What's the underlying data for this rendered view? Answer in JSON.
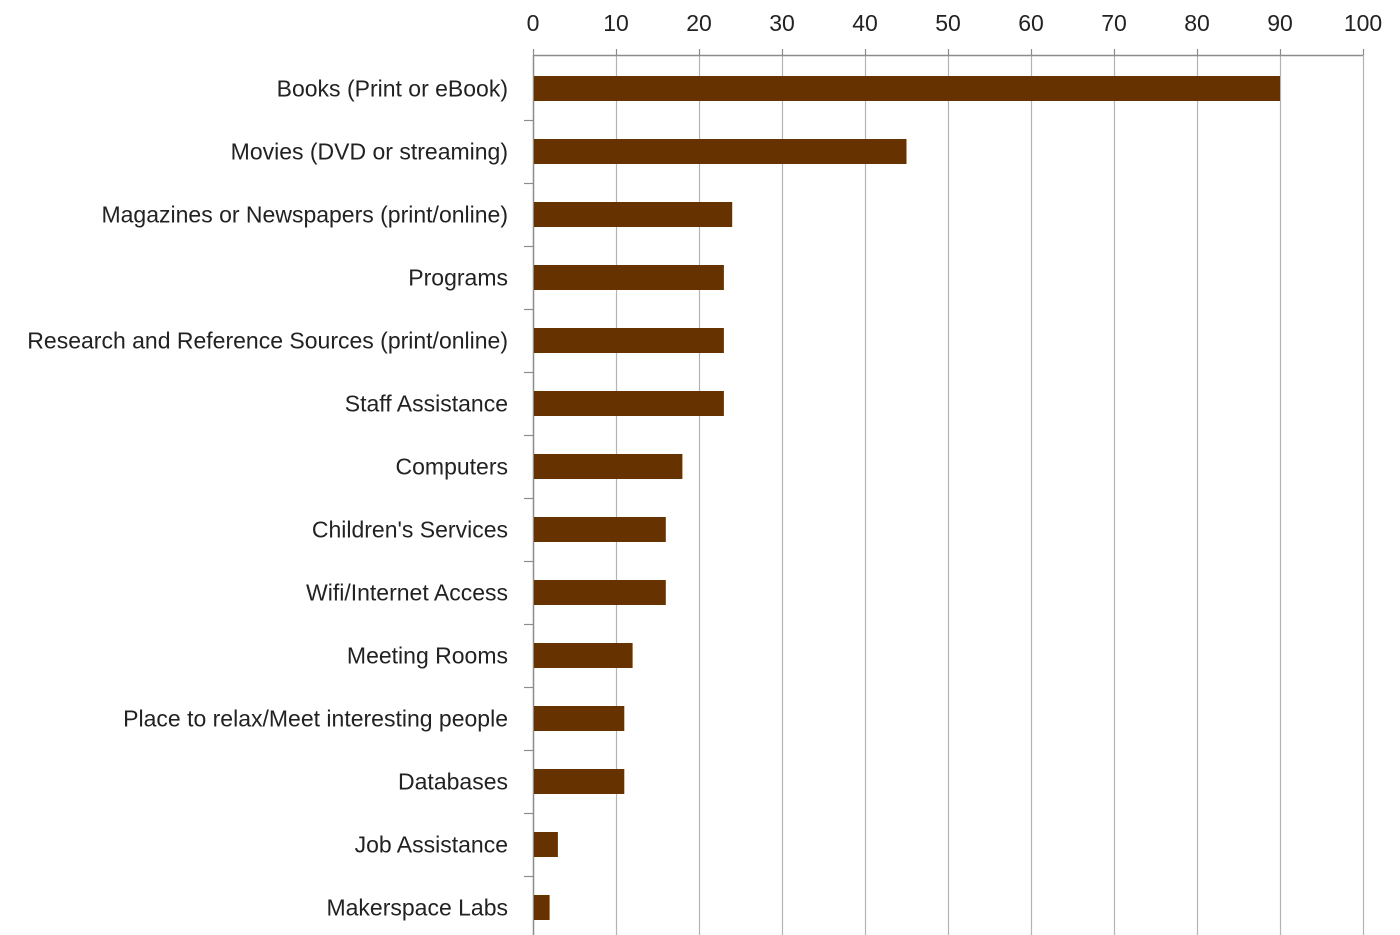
{
  "chart_data": {
    "type": "bar",
    "orientation": "horizontal",
    "categories": [
      "Books (Print or eBook)",
      "Movies (DVD or streaming)",
      "Magazines or Newspapers (print/online)",
      "Programs",
      "Research and Reference Sources (print/online)",
      "Staff Assistance",
      "Computers",
      "Children's Services",
      "Wifi/Internet Access",
      "Meeting Rooms",
      "Place to relax/Meet interesting people",
      "Databases",
      "Job Assistance",
      "Makerspace Labs"
    ],
    "values": [
      90,
      45,
      24,
      23,
      23,
      23,
      18,
      16,
      16,
      12,
      11,
      11,
      3,
      2
    ],
    "xlim": [
      0,
      100
    ],
    "xticks": [
      0,
      10,
      20,
      30,
      40,
      50,
      60,
      70,
      80,
      90,
      100
    ],
    "x_axis_position": "top",
    "grid": "vertical",
    "legend": "none",
    "bar_color": "#663300",
    "grid_color": "#b3b3b3",
    "axis_color": "#8c8c8c",
    "text_color": "#222222"
  }
}
